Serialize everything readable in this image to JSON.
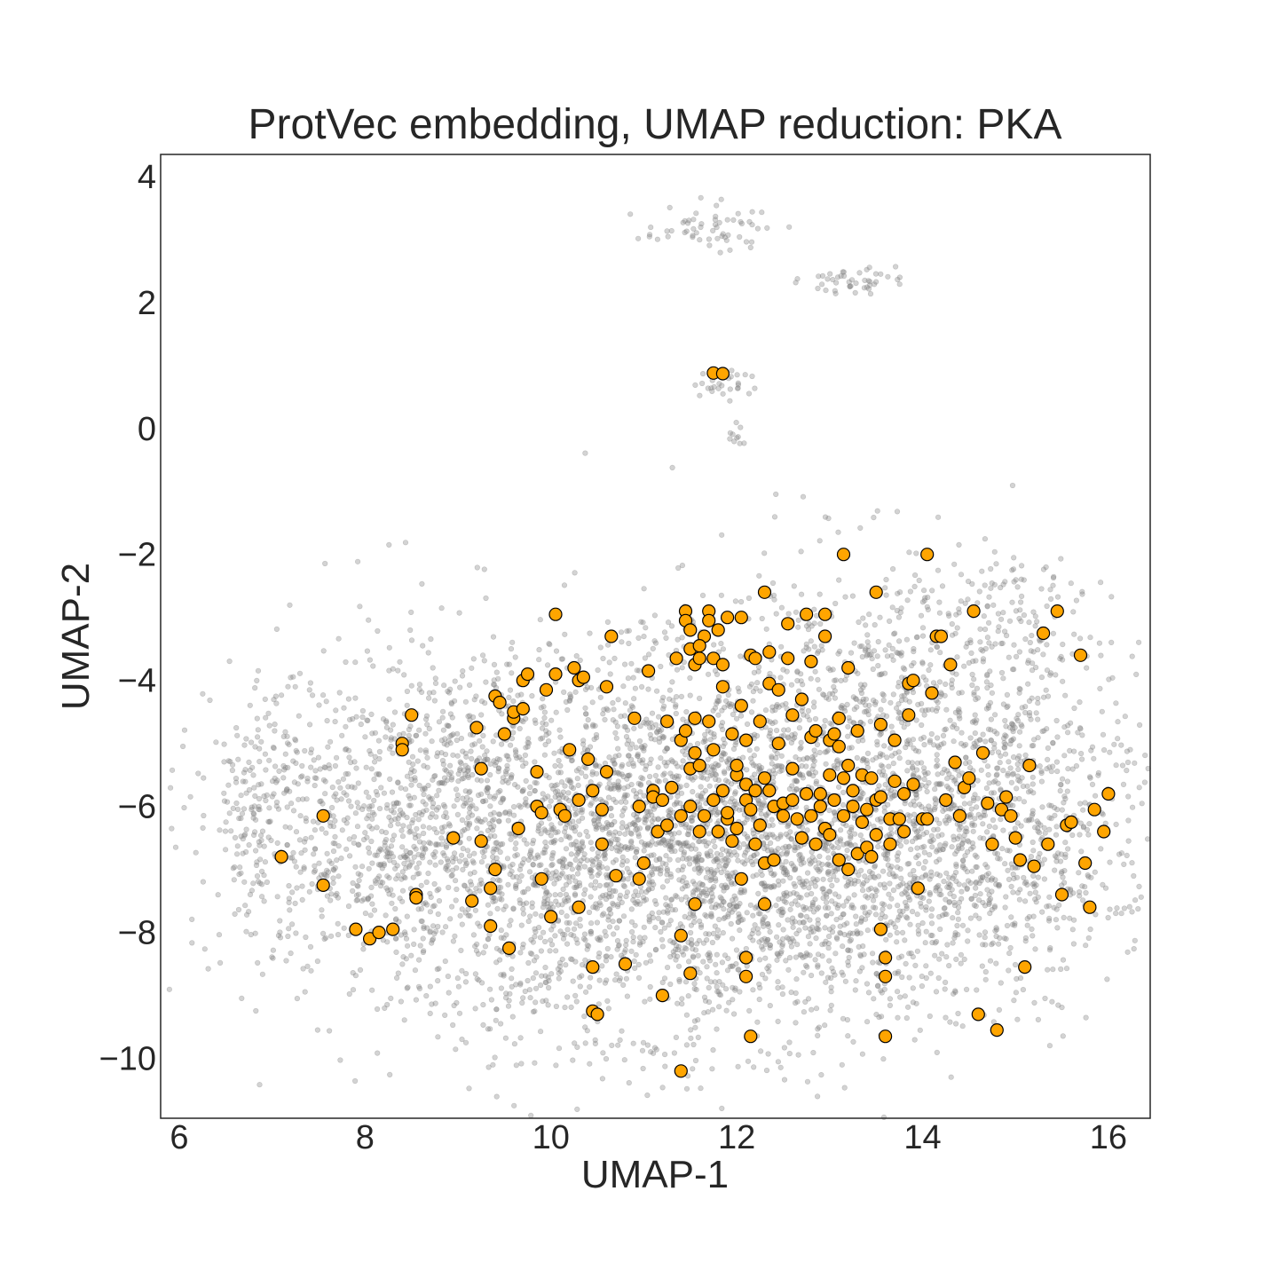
{
  "chart_data": {
    "type": "scatter",
    "title": "ProtVec embedding, UMAP reduction: PKA",
    "xlabel": "UMAP-1",
    "ylabel": "UMAP-2",
    "xlim": [
      5.8,
      16.45
    ],
    "ylim": [
      -10.95,
      4.35
    ],
    "xticks": [
      6,
      8,
      10,
      12,
      14,
      16
    ],
    "yticks": [
      4,
      2,
      0,
      -2,
      -4,
      -6,
      -8,
      -10
    ],
    "xtick_labels": [
      "6",
      "8",
      "10",
      "12",
      "14",
      "16"
    ],
    "ytick_labels": [
      "4",
      "2",
      "0",
      "−2",
      "−4",
      "−6",
      "−8",
      "−10"
    ],
    "grid": false,
    "series": [
      {
        "role": "background",
        "color": "#808080",
        "alpha": 0.35,
        "clusters": [
          {
            "cx": 12.2,
            "cy": -6.8,
            "sx": 1.9,
            "sy": 1.4,
            "n": 3200
          },
          {
            "cx": 10.0,
            "cy": -6.4,
            "sx": 1.4,
            "sy": 1.5,
            "n": 1200
          },
          {
            "cx": 8.2,
            "cy": -6.2,
            "sx": 0.9,
            "sy": 1.2,
            "n": 500
          },
          {
            "cx": 14.6,
            "cy": -5.6,
            "sx": 0.9,
            "sy": 1.3,
            "n": 600
          },
          {
            "cx": 13.2,
            "cy": -3.9,
            "sx": 1.2,
            "sy": 1.1,
            "n": 400
          },
          {
            "cx": 6.9,
            "cy": -6.0,
            "sx": 0.35,
            "sy": 0.9,
            "n": 150
          },
          {
            "cx": 14.8,
            "cy": -3.0,
            "sx": 0.45,
            "sy": 0.45,
            "n": 80
          },
          {
            "cx": 11.7,
            "cy": 3.2,
            "sx": 0.35,
            "sy": 0.18,
            "n": 60
          },
          {
            "cx": 13.2,
            "cy": 2.35,
            "sx": 0.25,
            "sy": 0.1,
            "n": 45
          },
          {
            "cx": 11.9,
            "cy": 0.7,
            "sx": 0.15,
            "sy": 0.15,
            "n": 30
          },
          {
            "cx": 12.0,
            "cy": -0.1,
            "sx": 0.05,
            "sy": 0.1,
            "n": 10
          }
        ]
      },
      {
        "role": "highlighted",
        "color": "#FFA500",
        "edgecolor": "#000000",
        "points": [
          [
            7.1,
            -6.8
          ],
          [
            7.55,
            -6.15
          ],
          [
            7.55,
            -7.25
          ],
          [
            7.9,
            -7.95
          ],
          [
            8.05,
            -8.1
          ],
          [
            8.15,
            -8.0
          ],
          [
            8.3,
            -7.95
          ],
          [
            8.4,
            -5.0
          ],
          [
            8.4,
            -5.1
          ],
          [
            8.5,
            -4.55
          ],
          [
            8.55,
            -7.4
          ],
          [
            8.55,
            -7.45
          ],
          [
            8.95,
            -6.5
          ],
          [
            9.15,
            -7.5
          ],
          [
            9.2,
            -4.75
          ],
          [
            9.25,
            -5.4
          ],
          [
            9.25,
            -6.55
          ],
          [
            9.35,
            -7.9
          ],
          [
            9.35,
            -7.3
          ],
          [
            9.4,
            -7.0
          ],
          [
            9.4,
            -4.25
          ],
          [
            9.45,
            -4.35
          ],
          [
            9.5,
            -4.85
          ],
          [
            9.55,
            -8.25
          ],
          [
            9.6,
            -4.6
          ],
          [
            9.6,
            -4.5
          ],
          [
            9.65,
            -6.35
          ],
          [
            9.7,
            -4.45
          ],
          [
            9.7,
            -4.0
          ],
          [
            9.75,
            -3.9
          ],
          [
            9.85,
            -6.0
          ],
          [
            9.85,
            -5.45
          ],
          [
            9.9,
            -6.1
          ],
          [
            9.9,
            -7.15
          ],
          [
            9.95,
            -4.15
          ],
          [
            10.0,
            -7.75
          ],
          [
            10.05,
            -2.95
          ],
          [
            10.05,
            -3.9
          ],
          [
            10.1,
            -6.05
          ],
          [
            10.15,
            -6.15
          ],
          [
            10.2,
            -5.1
          ],
          [
            10.25,
            -3.8
          ],
          [
            10.3,
            -7.6
          ],
          [
            10.3,
            -5.9
          ],
          [
            10.3,
            -4.0
          ],
          [
            10.35,
            -3.95
          ],
          [
            10.4,
            -5.25
          ],
          [
            10.45,
            -5.75
          ],
          [
            10.45,
            -8.55
          ],
          [
            10.45,
            -9.25
          ],
          [
            10.5,
            -9.3
          ],
          [
            10.55,
            -6.6
          ],
          [
            10.55,
            -6.05
          ],
          [
            10.6,
            -5.45
          ],
          [
            10.6,
            -4.1
          ],
          [
            10.65,
            -3.3
          ],
          [
            10.7,
            -7.1
          ],
          [
            10.8,
            -8.5
          ],
          [
            10.9,
            -4.6
          ],
          [
            10.95,
            -7.15
          ],
          [
            10.95,
            -6.0
          ],
          [
            11.0,
            -6.9
          ],
          [
            11.05,
            -3.85
          ],
          [
            11.1,
            -5.75
          ],
          [
            11.1,
            -5.85
          ],
          [
            11.15,
            -6.4
          ],
          [
            11.2,
            -5.9
          ],
          [
            11.25,
            -4.65
          ],
          [
            11.25,
            -6.3
          ],
          [
            11.3,
            -5.7
          ],
          [
            11.35,
            -3.65
          ],
          [
            11.4,
            -6.15
          ],
          [
            11.4,
            -4.95
          ],
          [
            11.45,
            -4.8
          ],
          [
            11.5,
            -3.5
          ],
          [
            11.5,
            -5.4
          ],
          [
            11.5,
            -6.0
          ],
          [
            11.5,
            -8.65
          ],
          [
            11.55,
            -3.75
          ],
          [
            11.55,
            -4.6
          ],
          [
            11.55,
            -5.15
          ],
          [
            11.6,
            -5.35
          ],
          [
            11.6,
            -6.4
          ],
          [
            11.6,
            -3.65
          ],
          [
            11.65,
            -3.3
          ],
          [
            11.65,
            -6.15
          ],
          [
            11.7,
            -2.9
          ],
          [
            11.7,
            -3.05
          ],
          [
            11.7,
            -4.65
          ],
          [
            11.75,
            -3.65
          ],
          [
            11.75,
            -5.1
          ],
          [
            11.75,
            -5.9
          ],
          [
            11.8,
            -3.2
          ],
          [
            11.8,
            -6.4
          ],
          [
            11.85,
            -4.1
          ],
          [
            11.85,
            -5.75
          ],
          [
            11.85,
            -3.75
          ],
          [
            11.9,
            -6.2
          ],
          [
            11.9,
            -6.1
          ],
          [
            11.95,
            -6.55
          ],
          [
            11.95,
            -4.85
          ],
          [
            12.0,
            -5.5
          ],
          [
            12.0,
            -5.35
          ],
          [
            12.0,
            -6.35
          ],
          [
            12.05,
            -7.15
          ],
          [
            12.05,
            -4.4
          ],
          [
            12.1,
            -5.65
          ],
          [
            12.1,
            -5.9
          ],
          [
            12.1,
            -4.95
          ],
          [
            12.15,
            -6.05
          ],
          [
            12.15,
            -3.6
          ],
          [
            12.2,
            -6.6
          ],
          [
            12.2,
            -5.75
          ],
          [
            12.2,
            -3.65
          ],
          [
            12.25,
            -4.65
          ],
          [
            12.25,
            -6.3
          ],
          [
            12.3,
            -5.55
          ],
          [
            12.3,
            -6.9
          ],
          [
            12.3,
            -7.55
          ],
          [
            12.35,
            -3.55
          ],
          [
            12.35,
            -4.05
          ],
          [
            12.35,
            -5.75
          ],
          [
            12.4,
            -6.0
          ],
          [
            12.4,
            -6.85
          ],
          [
            12.45,
            -4.15
          ],
          [
            12.45,
            -5.0
          ],
          [
            12.5,
            -5.95
          ],
          [
            12.5,
            -6.15
          ],
          [
            12.55,
            -3.1
          ],
          [
            12.55,
            -3.65
          ],
          [
            12.6,
            -4.55
          ],
          [
            12.6,
            -5.4
          ],
          [
            12.6,
            -5.9
          ],
          [
            12.65,
            -6.2
          ],
          [
            12.7,
            -6.5
          ],
          [
            12.7,
            -4.3
          ],
          [
            12.75,
            -2.95
          ],
          [
            12.75,
            -5.8
          ],
          [
            12.8,
            -6.15
          ],
          [
            12.8,
            -3.7
          ],
          [
            12.8,
            -4.9
          ],
          [
            12.85,
            -6.6
          ],
          [
            12.85,
            -4.8
          ],
          [
            12.9,
            -6.0
          ],
          [
            12.9,
            -5.8
          ],
          [
            12.95,
            -2.95
          ],
          [
            12.95,
            -3.3
          ],
          [
            12.95,
            -6.35
          ],
          [
            13.0,
            -6.45
          ],
          [
            13.0,
            -5.5
          ],
          [
            13.0,
            -4.95
          ],
          [
            13.05,
            -5.9
          ],
          [
            13.05,
            -4.85
          ],
          [
            13.1,
            -5.05
          ],
          [
            13.1,
            -6.85
          ],
          [
            13.1,
            -4.6
          ],
          [
            13.15,
            -5.55
          ],
          [
            13.15,
            -6.15
          ],
          [
            13.2,
            -3.8
          ],
          [
            13.2,
            -5.35
          ],
          [
            13.2,
            -7.0
          ],
          [
            13.25,
            -6.0
          ],
          [
            13.25,
            -5.75
          ],
          [
            13.3,
            -6.75
          ],
          [
            13.3,
            -4.8
          ],
          [
            13.35,
            -6.25
          ],
          [
            13.35,
            -5.5
          ],
          [
            13.4,
            -6.05
          ],
          [
            13.4,
            -6.65
          ],
          [
            13.45,
            -5.55
          ],
          [
            13.45,
            -6.8
          ],
          [
            13.5,
            -6.45
          ],
          [
            13.5,
            -5.9
          ],
          [
            13.5,
            -2.6
          ],
          [
            13.55,
            -4.7
          ],
          [
            13.55,
            -5.85
          ],
          [
            13.55,
            -7.95
          ],
          [
            13.6,
            -8.4
          ],
          [
            13.6,
            -8.7
          ],
          [
            13.6,
            -9.65
          ],
          [
            13.65,
            -6.6
          ],
          [
            13.65,
            -6.2
          ],
          [
            13.7,
            -4.95
          ],
          [
            13.7,
            -5.6
          ],
          [
            13.75,
            -6.2
          ],
          [
            13.8,
            -6.4
          ],
          [
            13.8,
            -5.8
          ],
          [
            13.85,
            -4.55
          ],
          [
            13.85,
            -4.05
          ],
          [
            13.9,
            -4.0
          ],
          [
            13.9,
            -5.65
          ],
          [
            13.95,
            -7.3
          ],
          [
            14.0,
            -6.2
          ],
          [
            14.05,
            -2.0
          ],
          [
            14.05,
            -6.2
          ],
          [
            14.1,
            -4.2
          ],
          [
            14.15,
            -3.3
          ],
          [
            14.2,
            -3.3
          ],
          [
            14.25,
            -5.9
          ],
          [
            14.3,
            -3.75
          ],
          [
            14.35,
            -5.3
          ],
          [
            14.4,
            -6.15
          ],
          [
            14.45,
            -5.7
          ],
          [
            14.5,
            -5.55
          ],
          [
            14.55,
            -2.9
          ],
          [
            14.6,
            -9.3
          ],
          [
            14.65,
            -5.15
          ],
          [
            14.7,
            -5.95
          ],
          [
            14.75,
            -6.6
          ],
          [
            14.8,
            -9.55
          ],
          [
            14.85,
            -6.05
          ],
          [
            14.9,
            -5.85
          ],
          [
            14.95,
            -6.15
          ],
          [
            15.0,
            -6.5
          ],
          [
            15.05,
            -6.85
          ],
          [
            15.1,
            -8.55
          ],
          [
            15.15,
            -5.35
          ],
          [
            15.2,
            -6.95
          ],
          [
            15.3,
            -3.25
          ],
          [
            15.35,
            -6.6
          ],
          [
            15.45,
            -2.9
          ],
          [
            15.5,
            -7.4
          ],
          [
            15.55,
            -6.3
          ],
          [
            15.6,
            -6.25
          ],
          [
            15.7,
            -3.6
          ],
          [
            15.75,
            -6.9
          ],
          [
            15.8,
            -7.6
          ],
          [
            15.85,
            -6.05
          ],
          [
            15.95,
            -6.4
          ],
          [
            16.0,
            -5.8
          ],
          [
            11.4,
            -10.2
          ],
          [
            11.55,
            -7.55
          ],
          [
            11.4,
            -8.05
          ],
          [
            12.15,
            -9.65
          ],
          [
            12.1,
            -8.7
          ],
          [
            12.1,
            -8.4
          ],
          [
            11.2,
            -9.0
          ],
          [
            11.75,
            0.88
          ],
          [
            11.85,
            0.87
          ],
          [
            13.15,
            -2.0
          ],
          [
            12.3,
            -2.6
          ],
          [
            11.9,
            -3.0
          ],
          [
            12.05,
            -3.0
          ],
          [
            11.45,
            -2.9
          ],
          [
            11.45,
            -3.05
          ],
          [
            11.5,
            -3.2
          ],
          [
            11.6,
            -3.45
          ]
        ]
      }
    ]
  }
}
